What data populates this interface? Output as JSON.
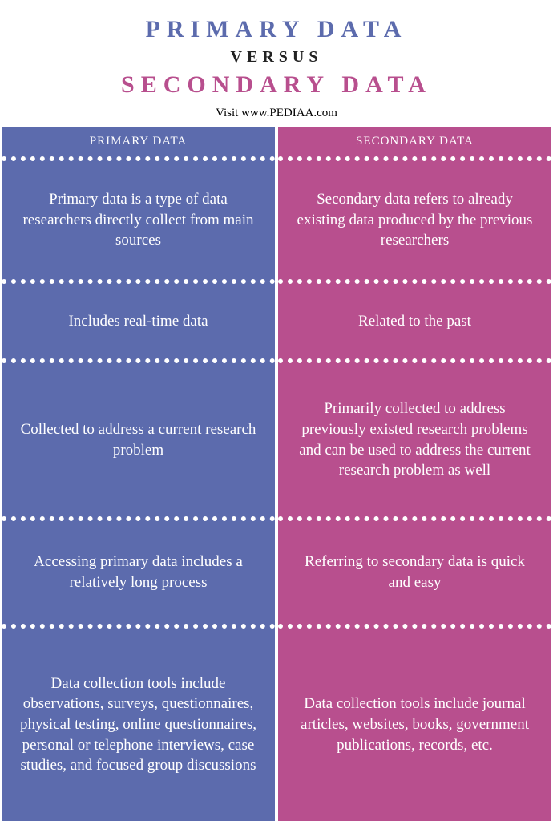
{
  "header": {
    "title_left": "PRIMARY DATA",
    "versus": "VERSUS",
    "title_right": "SECONDARY DATA",
    "visit": "Visit www.PEDIAA.com"
  },
  "colors": {
    "left_bg": "#5c6bad",
    "right_bg": "#b84f8e",
    "left_title": "#5c6bad",
    "right_title": "#b84f8e",
    "versus_color": "#222222",
    "divider": "#ffffff",
    "text": "#ffffff"
  },
  "columns": {
    "left_header": "PRIMARY DATA",
    "right_header": "SECONDARY DATA"
  },
  "rows": [
    {
      "left": "Primary data is a type of data researchers directly collect from main sources",
      "right": "Secondary data refers to already existing data produced by the previous researchers"
    },
    {
      "left": "Includes real-time data",
      "right": "Related to the past"
    },
    {
      "left": "Collected to address a current research problem",
      "right": "Primarily collected to address previously existed research problems and can be used to address the current research problem as well"
    },
    {
      "left": "Accessing primary data includes a relatively long process",
      "right": "Referring to secondary data is quick and easy"
    },
    {
      "left": "Data collection tools include observations, surveys, questionnaires, physical testing, online questionnaires, personal or telephone interviews, case studies, and focused group discussions",
      "right": "Data collection tools include journal articles, websites, books, government publications, records, etc."
    }
  ]
}
